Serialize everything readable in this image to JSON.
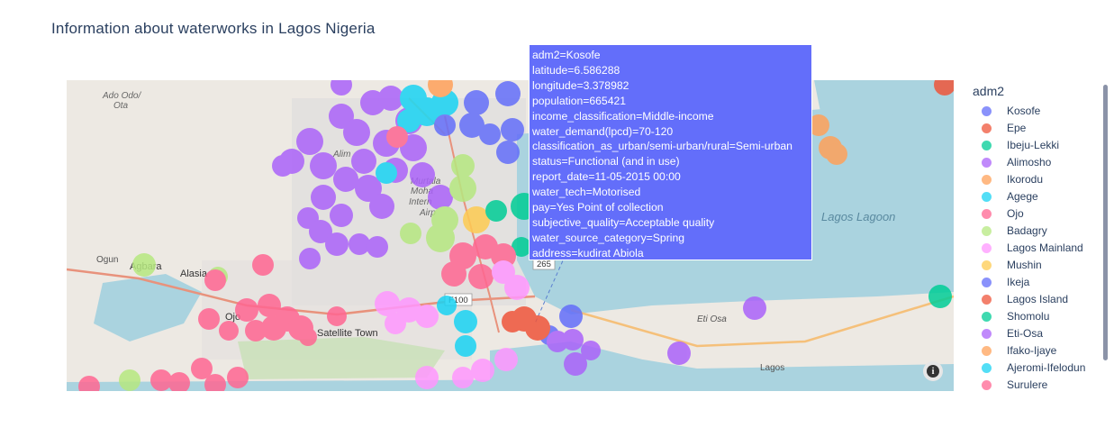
{
  "title": "Information about waterworks in Lagos Nigeria",
  "legend": {
    "title": "adm2",
    "items": [
      {
        "label": "Kosofe",
        "color": "#636efa"
      },
      {
        "label": "Epe",
        "color": "#ef553b"
      },
      {
        "label": "Ibeju-Lekki",
        "color": "#00cc96"
      },
      {
        "label": "Alimosho",
        "color": "#ab63fa"
      },
      {
        "label": "Ikorodu",
        "color": "#ffa15a"
      },
      {
        "label": "Agege",
        "color": "#19d3f3"
      },
      {
        "label": "Ojo",
        "color": "#ff6692"
      },
      {
        "label": "Badagry",
        "color": "#b6e880"
      },
      {
        "label": "Lagos Mainland",
        "color": "#ff97ff"
      },
      {
        "label": "Mushin",
        "color": "#fecb52"
      },
      {
        "label": "Ikeja",
        "color": "#636efa"
      },
      {
        "label": "Lagos Island",
        "color": "#ef553b"
      },
      {
        "label": "Shomolu",
        "color": "#00cc96"
      },
      {
        "label": "Eti-Osa",
        "color": "#ab63fa"
      },
      {
        "label": "Ifako-Ijaye",
        "color": "#ffa15a"
      },
      {
        "label": "Ajeromi-Ifelodun",
        "color": "#19d3f3"
      },
      {
        "label": "Surulere",
        "color": "#ff6692"
      }
    ]
  },
  "tooltip": {
    "lines": [
      "adm2=Kosofe",
      "latitude=6.586288",
      "longitude=3.378982",
      "population=665421",
      "income_classification=Middle-income",
      "water_demand(lpcd)=70-120",
      "classification_as_urban/semi-urban/rural=Semi-urban",
      "status=Functional (and in use)",
      "report_date=11-05-2015 00:00",
      "water_tech=Motorised",
      "pay=Yes Point of collection",
      "subjective_quality=Acceptable quality",
      "water_source_category=Spring",
      "address=kudirat Abiola"
    ]
  },
  "map_labels": {
    "ado_odo": "Ado Odo/",
    "ota": "Ota",
    "alimosho": "Alim",
    "murtala": "Murtala",
    "mohammed": "Moha",
    "international": "Intern",
    "airport": "Airp",
    "lagos_lagoon": "Lagos Lagoon",
    "ogun": "Ogun",
    "agbara": "Agbara",
    "alasia": "Alasia",
    "ojo": "Ojo",
    "satellite_town": "Satellite Town",
    "eti_osa": "Eti Osa",
    "lagos": "Lagos",
    "f100": "F100",
    "r265": "265"
  },
  "info_icon": "info-icon"
}
